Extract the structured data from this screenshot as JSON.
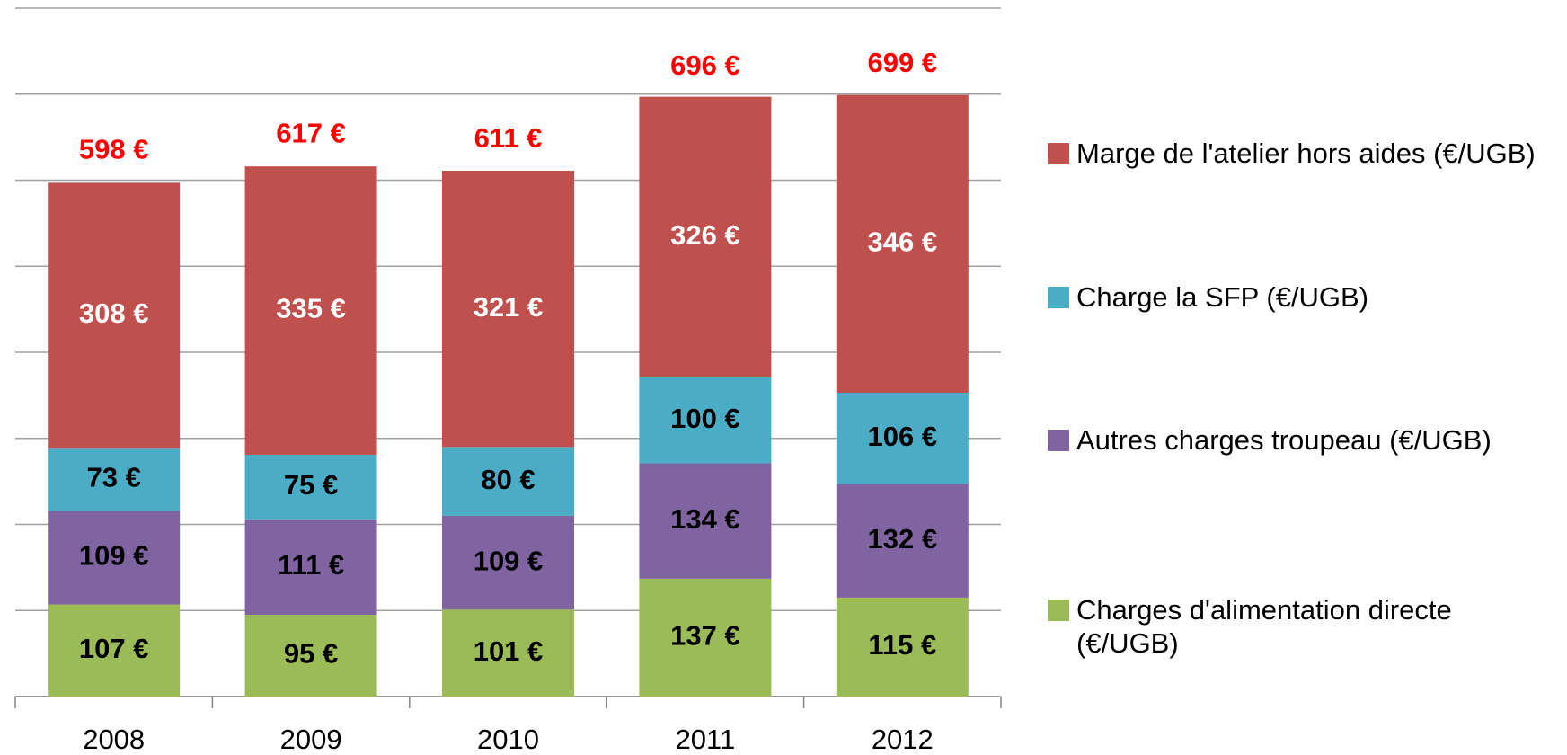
{
  "chart_data": {
    "type": "stacked_bar",
    "categories": [
      "2008",
      "2009",
      "2010",
      "2011",
      "2012"
    ],
    "series": [
      {
        "name": "Charges d'alimentation directe (€/UGB)",
        "color": "#9bbb59",
        "label_color": "#000000",
        "values": [
          107,
          95,
          101,
          137,
          115
        ],
        "value_labels": [
          "107 €",
          "95 €",
          "101 €",
          "137 €",
          "115 €"
        ]
      },
      {
        "name": "Autres charges troupeau (€/UGB)",
        "color": "#8064a2",
        "label_color": "#000000",
        "values": [
          109,
          111,
          109,
          134,
          132
        ],
        "value_labels": [
          "109 €",
          "111 €",
          "109 €",
          "134 €",
          "132 €"
        ]
      },
      {
        "name": "Charge la SFP (€/UGB)",
        "color": "#4bacc6",
        "label_color": "#000000",
        "values": [
          73,
          75,
          80,
          100,
          106
        ],
        "value_labels": [
          "73 €",
          "75 €",
          "80 €",
          "100 €",
          "106 €"
        ]
      },
      {
        "name": "Marge de l'atelier hors aides (€/UGB)",
        "color": "#c0504d",
        "label_color": "#ffffff",
        "values": [
          308,
          335,
          321,
          326,
          346
        ],
        "value_labels": [
          "308 €",
          "335 €",
          "321 €",
          "326 €",
          "346 €"
        ]
      }
    ],
    "totals": {
      "color": "#ff0000",
      "values": [
        598,
        617,
        611,
        696,
        699
      ],
      "value_labels": [
        "598 €",
        "617 €",
        "611 €",
        "696 €",
        "699 €"
      ]
    },
    "ylim": [
      0,
      800
    ],
    "yticks": [
      0,
      100,
      200,
      300,
      400,
      500,
      600,
      700,
      800
    ],
    "grid": true,
    "legend": "right"
  }
}
